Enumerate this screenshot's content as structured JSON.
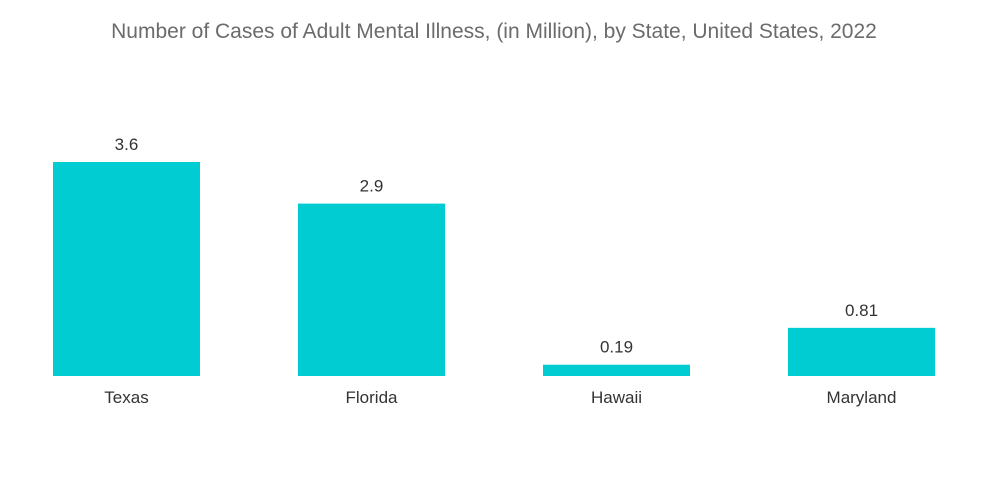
{
  "chart_data": {
    "type": "bar",
    "title": "Number of Cases of Adult Mental Illness, (in Million), by State, United States, 2022",
    "categories": [
      "Texas",
      "Florida",
      "Hawaii",
      "Maryland"
    ],
    "values": [
      3.6,
      2.9,
      0.19,
      0.81
    ],
    "value_labels": [
      "3.6",
      "2.9",
      "0.19",
      "0.81"
    ],
    "xlabel": "",
    "ylabel": "",
    "ylim": [
      0,
      3.6
    ],
    "grid": false,
    "legend": "none",
    "bar_color": "#00ccd1"
  }
}
